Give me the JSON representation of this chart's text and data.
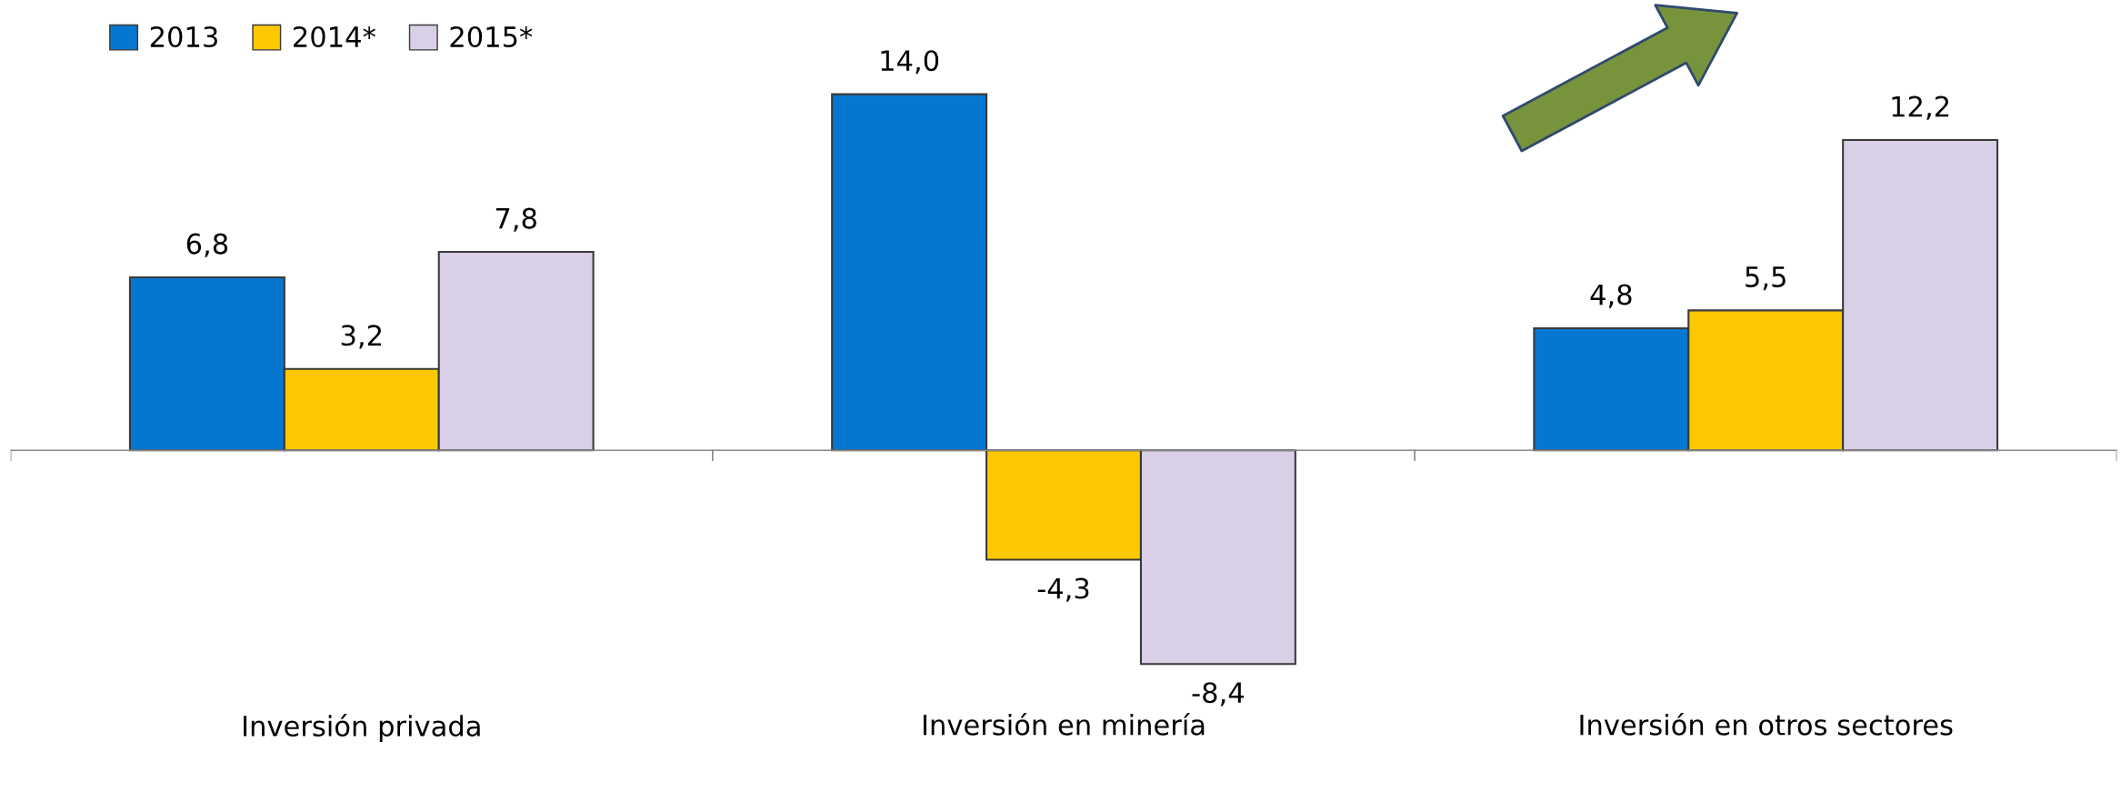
{
  "chart_data": {
    "type": "bar",
    "categories": [
      "Inversión privada",
      "Inversión en minería",
      "Inversión en otros sectores"
    ],
    "series": [
      {
        "name": "2013",
        "color": "#0677d0",
        "values": [
          6.8,
          14.0,
          4.8
        ],
        "value_labels": [
          "6,8",
          "14,0",
          "4,8"
        ]
      },
      {
        "name": "2014*",
        "color": "#fcc800",
        "values": [
          3.2,
          -4.3,
          5.5
        ],
        "value_labels": [
          "3,2",
          "-4,3",
          "5,5"
        ]
      },
      {
        "name": "2015*",
        "color": "#d9cfe6",
        "values": [
          7.8,
          -8.4,
          12.2
        ],
        "value_labels": [
          "7,8",
          "-8,4",
          "12,2"
        ]
      }
    ],
    "legend": "top left"
  }
}
